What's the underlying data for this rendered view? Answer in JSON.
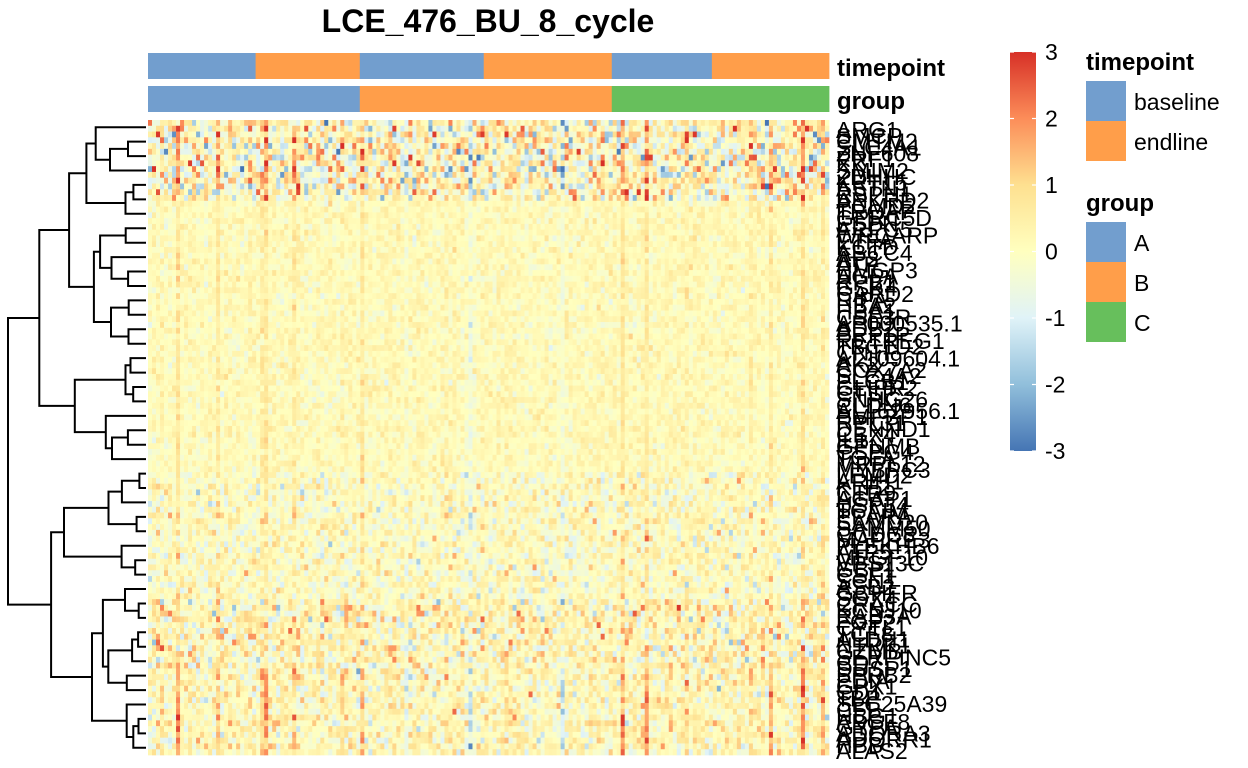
{
  "chart_data": {
    "type": "heatmap",
    "title": "LCE_476_BU_8_cycle",
    "color_scale": {
      "min": -3,
      "max": 3,
      "ticks": [
        3,
        2,
        1,
        0,
        -1,
        -2,
        -3
      ],
      "colors": [
        "#4575b4",
        "#91bfdb",
        "#e0f3f8",
        "#ffffbf",
        "#fee090",
        "#fc8d59",
        "#d73027"
      ]
    },
    "column_annotations": [
      {
        "name": "timepoint",
        "segments": [
          {
            "level": "baseline",
            "fraction": 0.158
          },
          {
            "level": "endline",
            "fraction": 0.153
          },
          {
            "level": "baseline",
            "fraction": 0.182
          },
          {
            "level": "endline",
            "fraction": 0.188
          },
          {
            "level": "baseline",
            "fraction": 0.147
          },
          {
            "level": "endline",
            "fraction": 0.172
          }
        ]
      },
      {
        "name": "group",
        "segments": [
          {
            "level": "A",
            "fraction": 0.311
          },
          {
            "level": "B",
            "fraction": 0.37
          },
          {
            "level": "C",
            "fraction": 0.319
          }
        ]
      }
    ],
    "legends": [
      {
        "title": "timepoint",
        "items": [
          {
            "label": "baseline",
            "color": "#729ECE"
          },
          {
            "label": "endline",
            "color": "#FF9E4A"
          }
        ]
      },
      {
        "title": "group",
        "items": [
          {
            "label": "A",
            "color": "#729ECE"
          },
          {
            "label": "B",
            "color": "#FF9E4A"
          },
          {
            "label": "C",
            "color": "#67BF5C"
          }
        ]
      }
    ],
    "row_labels": [
      "ARG1",
      "SMCP",
      "CMTM2",
      "SLC4A1",
      "ZNF608",
      "PRF1",
      "XK",
      "SMIM2",
      "ZDHHC",
      "KRT15",
      "ASTN1",
      "RSPH1",
      "ANKRD2",
      "PCMD2",
      "TROAP",
      "GPRC5D",
      "ESPN",
      "ARPC5",
      "WRCARP",
      "ETFA",
      "KCTD",
      "ABCC4",
      "AP2",
      "ATP",
      "HMGP3",
      "AGPA",
      "RPB1",
      "GSK4",
      "CARD2",
      "RIPA",
      "HBA2",
      "HBA1",
      "CSF3R",
      "AP000535.1",
      "ADB2",
      "PRF1P",
      "RETREG1",
      "TBC1D2",
      "CNTF",
      "AL109604.1",
      "AK2",
      "COX7A2",
      "SLC4A2",
      "PLCB1",
      "GLIPR2",
      "CTSP",
      "SNHG26",
      "CLDN6",
      "AL162956.1",
      "PMFBP1",
      "RPL31",
      "DENND1",
      "CBX4",
      "IL1",
      "GPNMB",
      "CSPG4",
      "TGFA",
      "MRPL12",
      "MYBPC3",
      "LEMD2",
      "ARIH1",
      "KLF2",
      "CTR9",
      "AGAP1",
      "USP34",
      "TCAIM",
      "PPARA",
      "SAMD20",
      "SAMM50",
      "CCDC8",
      "MAPRE3",
      "PLEKHB6",
      "ATP5",
      "MEGF10",
      "VPS13C",
      "GBP1",
      "CSF1",
      "SCN1",
      "ASB2",
      "GCHFR",
      "SOX4",
      "CRACC",
      "KCNJ10",
      "RAB3A",
      "FGF2",
      "CYTL1",
      "TCF8",
      "ALDH1",
      "NTRK1",
      "GZMB",
      "SERPINC5",
      "CD7",
      "DUSP1",
      "SPRB2",
      "PDIA",
      "GPX1",
      "CD1",
      "TBP",
      "SLC25A39",
      "CFB",
      "HBG1",
      "ABCF8",
      "GYPA",
      "ADORA3",
      "ADORR1",
      "HBB",
      "ALAS2"
    ]
  }
}
